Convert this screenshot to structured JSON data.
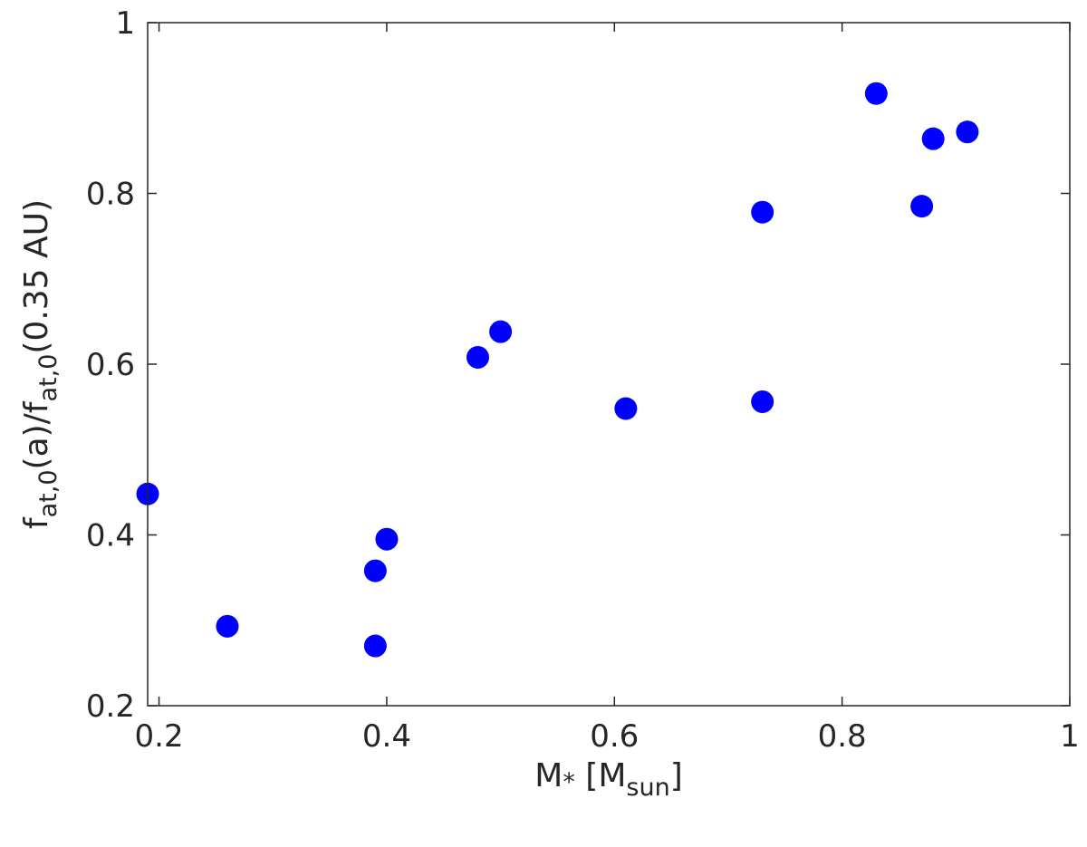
{
  "chart_data": {
    "type": "scatter",
    "title": "",
    "xlabel": {
      "main": "M",
      "sub1": "*",
      "bracket_open": " [M",
      "sub2": "sun",
      "bracket_close": "]"
    },
    "ylabel": {
      "f1": "f",
      "sub1": "at,0",
      "mid": "(a)/f",
      "sub2": "at,0",
      "tail": "(0.35 AU)"
    },
    "xlim": [
      0.19,
      1.0
    ],
    "ylim": [
      0.2,
      1.0
    ],
    "xticks": [
      0.2,
      0.4,
      0.6,
      0.8,
      1.0
    ],
    "xtick_labels": [
      "0.2",
      "0.4",
      "0.6",
      "0.8",
      "1"
    ],
    "yticks": [
      0.2,
      0.4,
      0.6,
      0.8,
      1.0
    ],
    "ytick_labels": [
      "0.2",
      "0.4",
      "0.6",
      "0.8",
      "1"
    ],
    "grid": false,
    "marker_color": "#0000ff",
    "axis_color": "#262626",
    "points": [
      {
        "x": 0.19,
        "y": 0.448
      },
      {
        "x": 0.26,
        "y": 0.293
      },
      {
        "x": 0.39,
        "y": 0.358
      },
      {
        "x": 0.39,
        "y": 0.27
      },
      {
        "x": 0.4,
        "y": 0.395
      },
      {
        "x": 0.48,
        "y": 0.608
      },
      {
        "x": 0.5,
        "y": 0.638
      },
      {
        "x": 0.61,
        "y": 0.548
      },
      {
        "x": 0.73,
        "y": 0.778
      },
      {
        "x": 0.73,
        "y": 0.556
      },
      {
        "x": 0.83,
        "y": 0.917
      },
      {
        "x": 0.87,
        "y": 0.785
      },
      {
        "x": 0.88,
        "y": 0.864
      },
      {
        "x": 0.91,
        "y": 0.872
      }
    ]
  }
}
